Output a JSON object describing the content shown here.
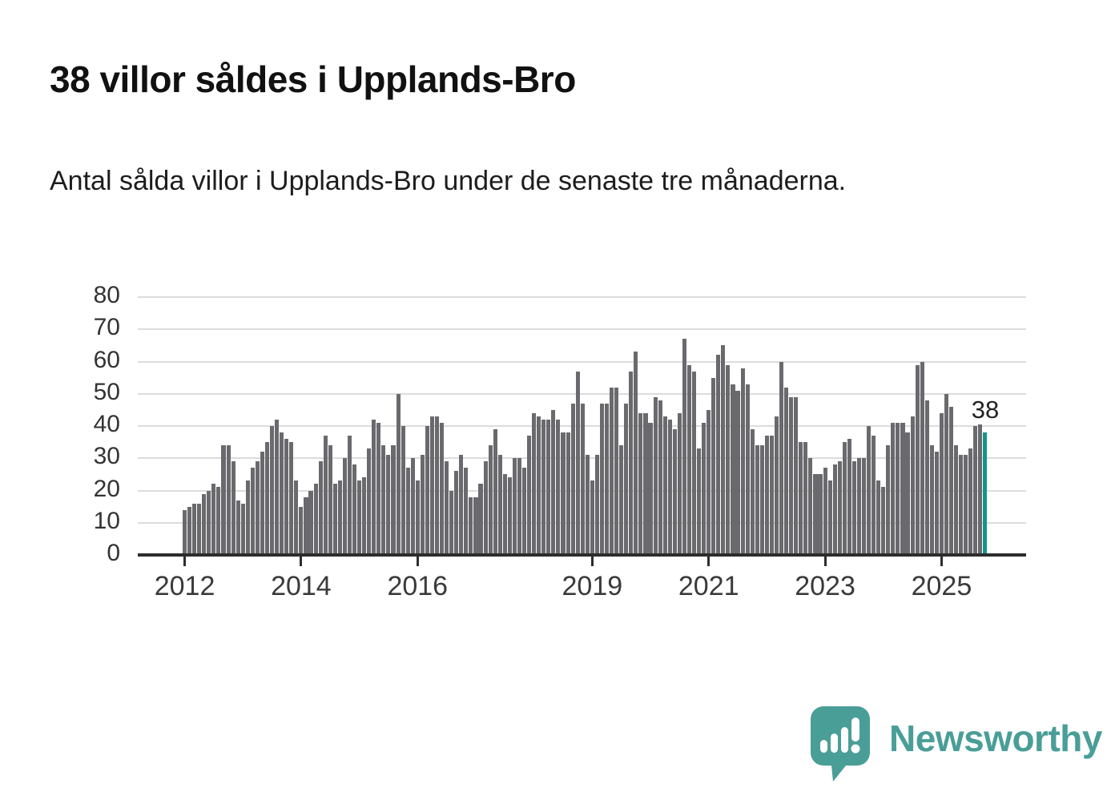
{
  "title": "38 villor såldes i Upplands-Bro",
  "subtitle": "Antal sålda villor i Upplands-Bro under de senaste tre månaderna.",
  "annotation": {
    "label": "38"
  },
  "branding": {
    "name": "Newsworthy"
  },
  "colors": {
    "bar": "#6a6a6e",
    "highlight": "#16938d",
    "gridline": "#dcdcdc",
    "axis": "#2d2d2d",
    "text": "#1d1d1d",
    "brand_teal": "#4a9e98"
  },
  "chart_data": {
    "type": "bar",
    "title": "38 villor såldes i Upplands-Bro",
    "subtitle": "Antal sålda villor i Upplands-Bro under de senaste tre månaderna.",
    "xlabel": "",
    "ylabel": "",
    "x_start_month": "2012-01",
    "x_end_month": "2025-10",
    "ylim": [
      0,
      80
    ],
    "yticks": [
      0,
      10,
      20,
      30,
      40,
      50,
      60,
      70,
      80
    ],
    "grid": true,
    "legend": false,
    "x_tick_labels": [
      "2012",
      "2014",
      "2016",
      "2019",
      "2021",
      "2023",
      "2025"
    ],
    "x_tick_month_index": [
      0,
      24,
      48,
      84,
      108,
      132,
      156
    ],
    "highlight_last_bar": true,
    "highlight_last_value": 38,
    "values": [
      14,
      15,
      16,
      16,
      19,
      20,
      22,
      21,
      34,
      34,
      29,
      17,
      16,
      23,
      27,
      29,
      32,
      35,
      40,
      42,
      38,
      36,
      35,
      23,
      15,
      18,
      20,
      22,
      29,
      37,
      34,
      22,
      23,
      30,
      37,
      28,
      23,
      24,
      33,
      42,
      41,
      34,
      31,
      34,
      50,
      40,
      27,
      30,
      23,
      31,
      40,
      43,
      43,
      41,
      29,
      20,
      26,
      31,
      27,
      18,
      18,
      22,
      29,
      34,
      39,
      31,
      25,
      24,
      30,
      30,
      27,
      37,
      44,
      43,
      42,
      42,
      45,
      42,
      38,
      38,
      47,
      57,
      47,
      31,
      23,
      31,
      47,
      47,
      52,
      52,
      34,
      47,
      57,
      63,
      44,
      44,
      41,
      49,
      48,
      43,
      42,
      39,
      44,
      67,
      59,
      57,
      33,
      41,
      45,
      55,
      62,
      65,
      59,
      53,
      51,
      58,
      53,
      39,
      34,
      34,
      37,
      37,
      43,
      60,
      52,
      49,
      49,
      35,
      35,
      30,
      25,
      25,
      27,
      23,
      28,
      29,
      35,
      36,
      29,
      30,
      30,
      40,
      37,
      23,
      21,
      34,
      41,
      41,
      41,
      38,
      43,
      59,
      60,
      48,
      34,
      32,
      44,
      50,
      46,
      34,
      31,
      31,
      33,
      40,
      41,
      38
    ]
  }
}
